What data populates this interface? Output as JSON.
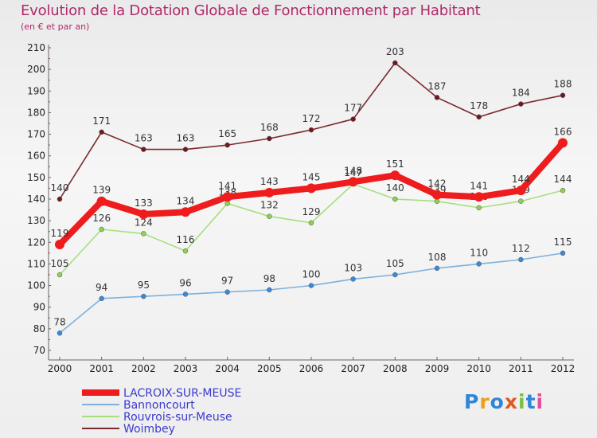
{
  "header": {
    "title": "Evolution de la Dotation Globale de Fonctionnement par Habitant",
    "subtitle": "(en € et par an)"
  },
  "logo_text": "Proxiti",
  "colors": {
    "title": "#b0286a",
    "axis": "#666666",
    "tick_mark": "#cc3333",
    "legend_text": "#3a3ad0"
  },
  "chart_data": {
    "type": "line",
    "title": "Evolution de la Dotation Globale de Fonctionnement par Habitant",
    "subtitle": "(en € et par an)",
    "xlabel": "",
    "ylabel": "",
    "x": [
      "2000",
      "2001",
      "2002",
      "2003",
      "2004",
      "2005",
      "2006",
      "2007",
      "2008",
      "2009",
      "2010",
      "2011",
      "2012"
    ],
    "ylim": [
      70,
      210
    ],
    "yticks": [
      70,
      80,
      90,
      100,
      110,
      120,
      130,
      140,
      150,
      160,
      170,
      180,
      190,
      200,
      210
    ],
    "grid": false,
    "legend_position": "bottom-left",
    "series": [
      {
        "name": "Woimbey",
        "color": "#7a2a2e",
        "marker": "#6e1a1e",
        "values": [
          140,
          171,
          163,
          163,
          165,
          168,
          172,
          177,
          203,
          187,
          178,
          184,
          188
        ]
      },
      {
        "name": "Rouvrois-sur-Meuse",
        "color": "#a6df7e",
        "marker": "#8cd14f",
        "values": [
          105,
          126,
          124,
          116,
          138,
          132,
          129,
          147,
          140,
          139,
          136,
          139,
          144
        ]
      },
      {
        "name": "Bannoncourt",
        "color": "#7fb0dc",
        "marker": "#3c8ad6",
        "values": [
          78,
          94,
          95,
          96,
          97,
          98,
          100,
          103,
          105,
          108,
          110,
          112,
          115
        ]
      },
      {
        "name": "LACROIX-SUR-MEUSE",
        "color": "#ee1c1c",
        "marker": "#ee1c1c",
        "values": [
          119,
          139,
          133,
          134,
          141,
          143,
          145,
          148,
          151,
          142,
          141,
          144,
          166
        ]
      }
    ],
    "legend_order": [
      "LACROIX-SUR-MEUSE",
      "Bannoncourt",
      "Rouvrois-sur-Meuse",
      "Woimbey"
    ]
  }
}
